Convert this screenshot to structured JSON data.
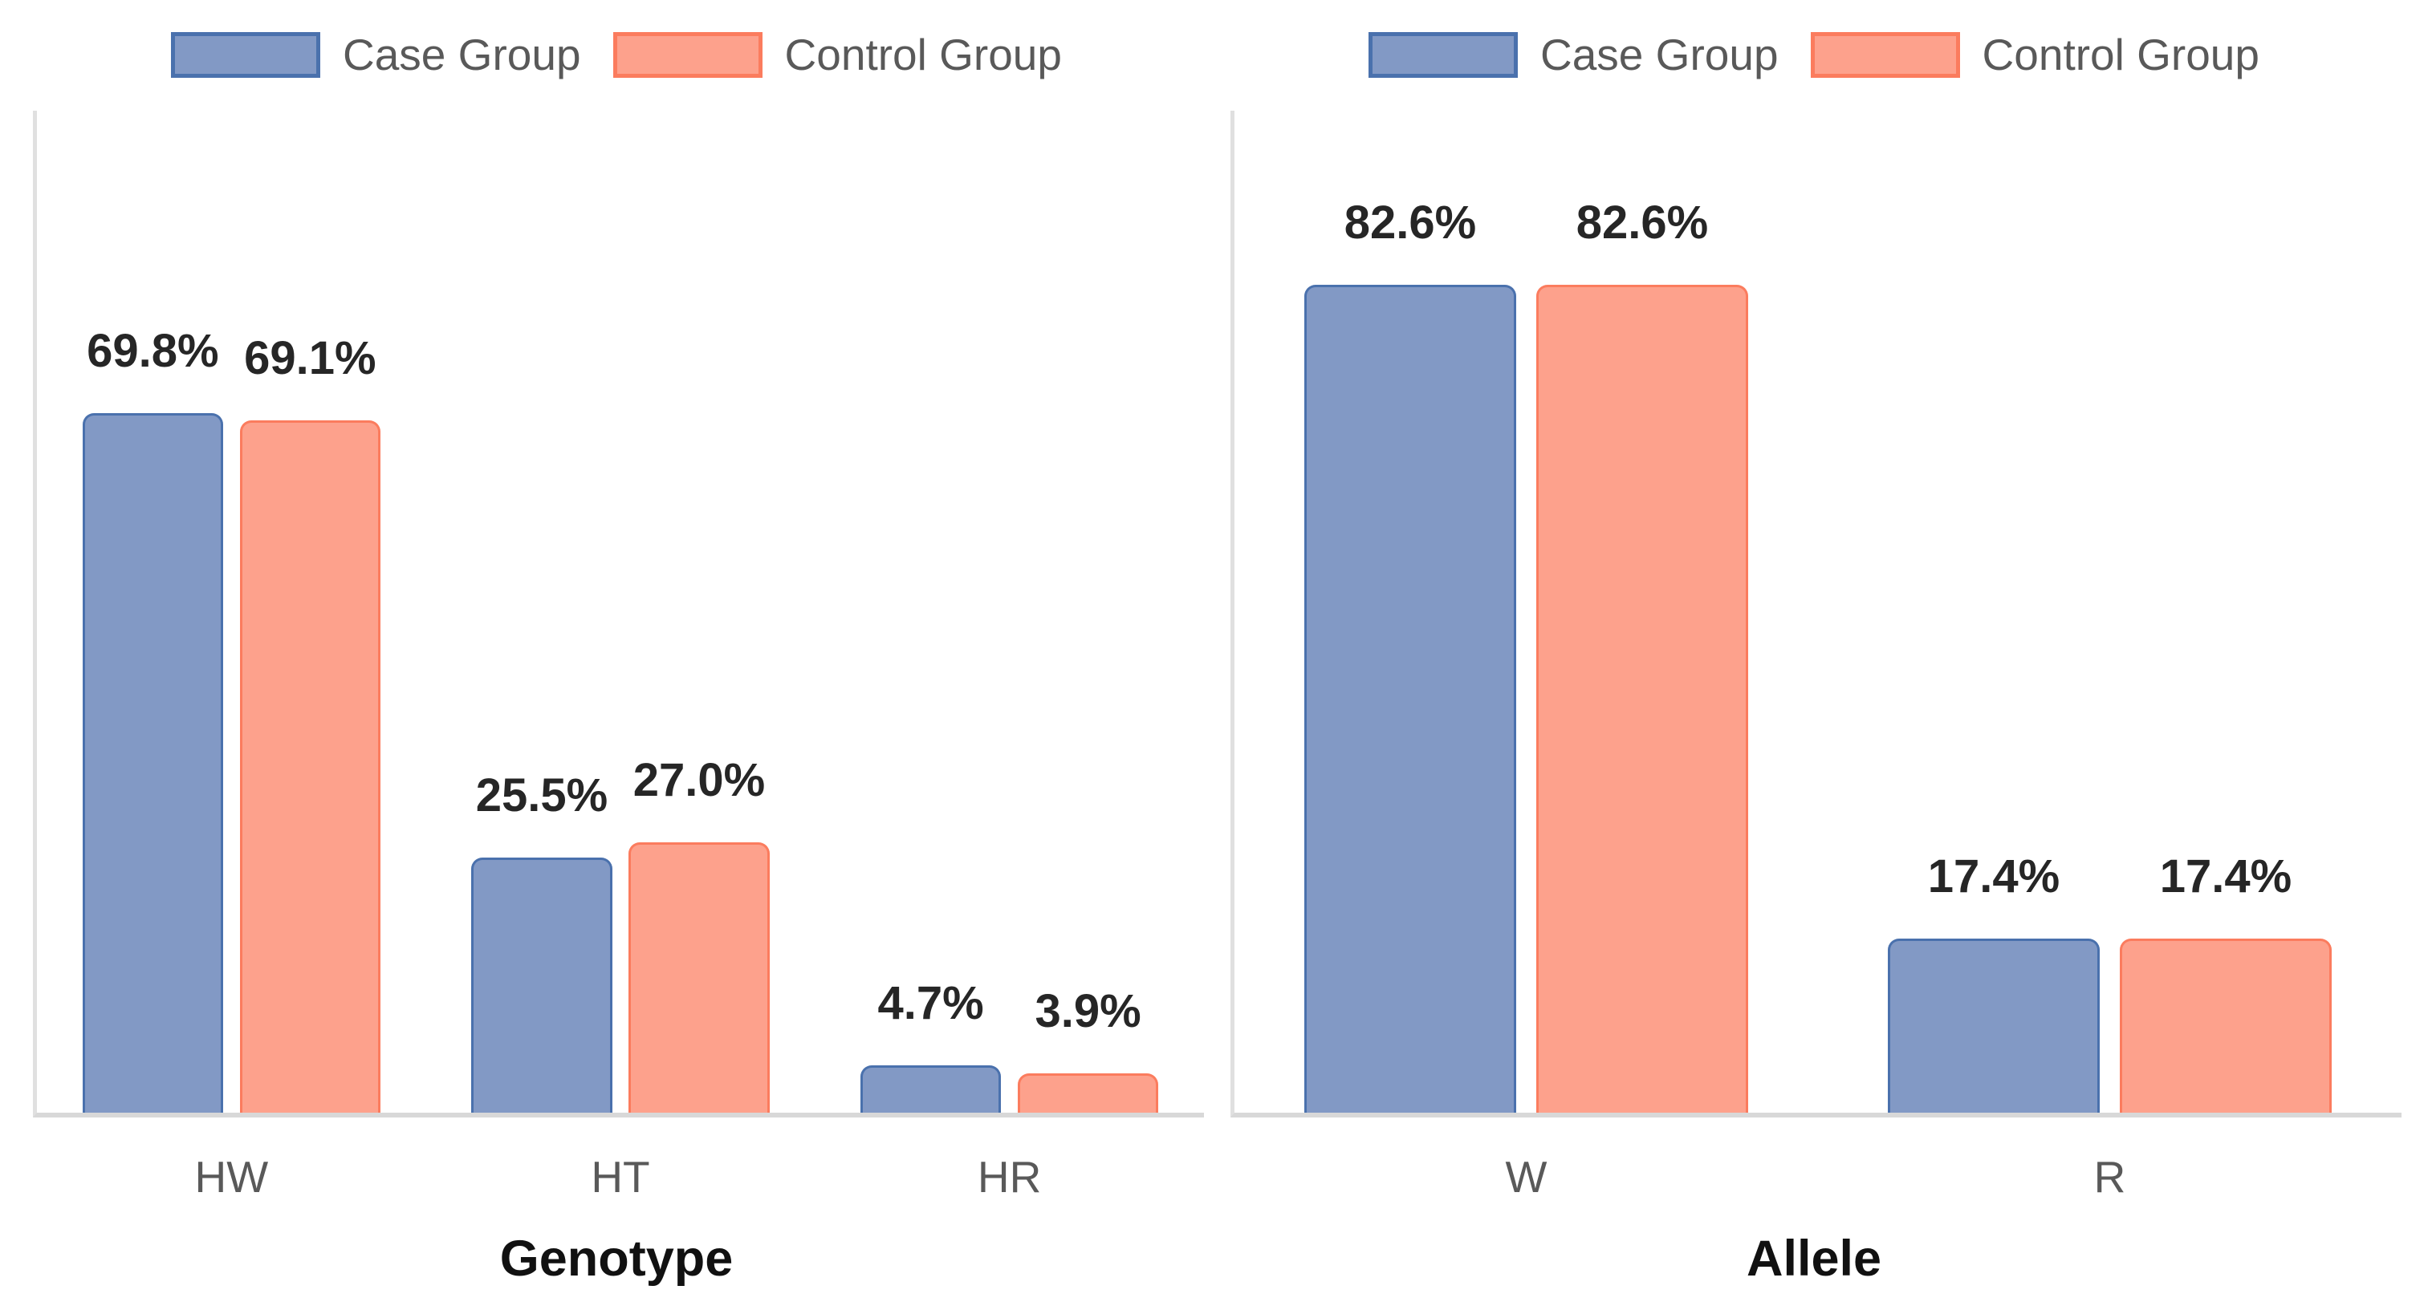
{
  "colors": {
    "case_fill": "#8299c5",
    "case_border": "#4a71ad",
    "control_fill": "#fda18c",
    "control_border": "#fb7c5e",
    "axis_line_left": "#e0e0e0",
    "axis_line_bottom": "#d8d8d8",
    "value_label": "#262626",
    "tick_label": "#595959",
    "legend_label": "#595959",
    "title": "#111111"
  },
  "legend": {
    "items": [
      {
        "series": "case",
        "label": "Case Group"
      },
      {
        "series": "control",
        "label": "Control Group"
      }
    ]
  },
  "chart_data": [
    {
      "type": "bar",
      "title": "Genotype",
      "categories": [
        "HW",
        "HT",
        "HR"
      ],
      "series": [
        {
          "name": "Case Group",
          "color_key": "case",
          "values": [
            69.8,
            25.5,
            4.7
          ],
          "labels": [
            "69.8%",
            "25.5%",
            "4.7%"
          ]
        },
        {
          "name": "Control Group",
          "color_key": "control",
          "values": [
            69.1,
            27.0,
            3.9
          ],
          "labels": [
            "69.1%",
            "27.0%",
            "3.9%"
          ]
        }
      ],
      "xlabel": "Genotype",
      "ylabel": "",
      "ylim": [
        0,
        100
      ],
      "grid": false,
      "y_axis_ticks_visible": false,
      "legend_position": "top"
    },
    {
      "type": "bar",
      "title": "Allele",
      "categories": [
        "W",
        "R"
      ],
      "series": [
        {
          "name": "Case Group",
          "color_key": "case",
          "values": [
            82.6,
            17.4
          ],
          "labels": [
            "82.6%",
            "17.4%"
          ]
        },
        {
          "name": "Control Group",
          "color_key": "control",
          "values": [
            82.6,
            17.4
          ],
          "labels": [
            "82.6%",
            "17.4%"
          ]
        }
      ],
      "xlabel": "Allele",
      "ylabel": "",
      "ylim": [
        0,
        100
      ],
      "grid": false,
      "y_axis_ticks_visible": false,
      "legend_position": "top"
    }
  ]
}
